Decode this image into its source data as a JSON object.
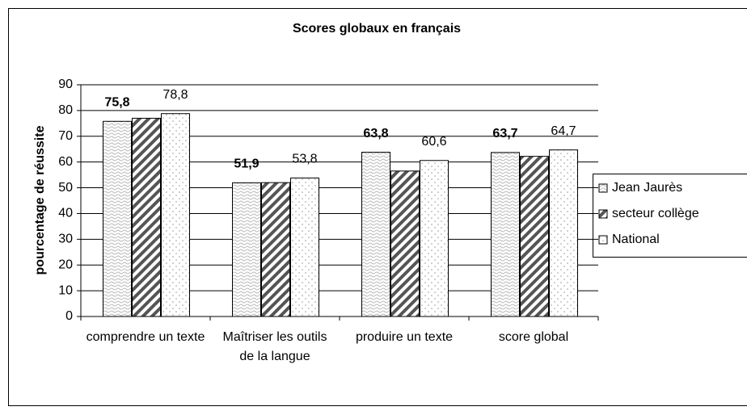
{
  "chart_data": {
    "type": "bar",
    "title": "Scores globaux en français",
    "y_label": "pourcentage de réussite",
    "categories": [
      "comprendre un texte",
      "Maîtriser les outils de la langue",
      "produire un texte",
      "score global"
    ],
    "series": [
      {
        "name": "Jean Jaurès",
        "color": "#b8b8b8",
        "values": [
          75.8,
          51.9,
          63.8,
          63.7
        ],
        "value_labels": [
          "75,8",
          "51,9",
          "63,8",
          "63,7"
        ]
      },
      {
        "name": "secteur collège",
        "color": "#555555",
        "values": [
          77,
          52,
          56.5,
          62.2
        ]
      },
      {
        "name": "National",
        "color": "#999999",
        "values": [
          78.8,
          53.8,
          60.6,
          64.7
        ],
        "value_labels": [
          "78,8",
          "53,8",
          "60,6",
          "64,7"
        ]
      }
    ],
    "ylim": [
      0,
      90
    ],
    "yticks": [
      0,
      10,
      20,
      30,
      40,
      50,
      60,
      70,
      80,
      90
    ],
    "grid": true,
    "legend": "right"
  }
}
